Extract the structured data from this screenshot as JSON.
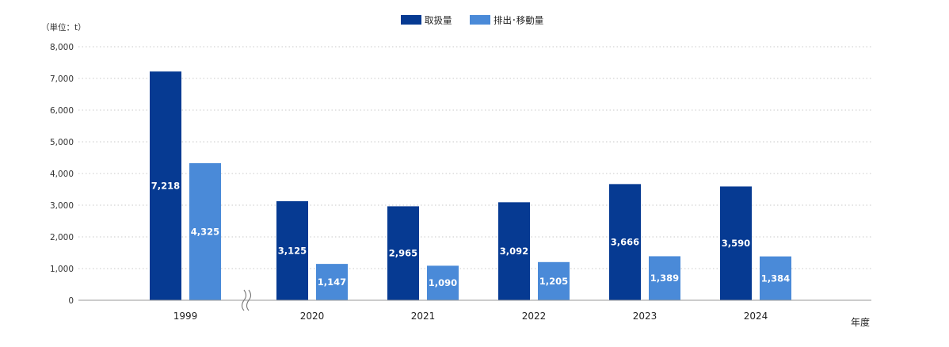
{
  "chart_data": {
    "type": "bar",
    "unit_label": "（単位：t）",
    "xlabel": "年度",
    "categories": [
      "1999",
      "2020",
      "2021",
      "2022",
      "2023",
      "2024"
    ],
    "series": [
      {
        "name": "取扱量",
        "color": "#063a92",
        "values": [
          7218,
          3125,
          2965,
          3092,
          3666,
          3590
        ],
        "labels": [
          "7,218",
          "3,125",
          "2,965",
          "3,092",
          "3,666",
          "3,590"
        ]
      },
      {
        "name": "排出･移動量",
        "color": "#4a8ad8",
        "values": [
          4325,
          1147,
          1090,
          1205,
          1389,
          1384
        ],
        "labels": [
          "4,325",
          "1,147",
          "1,090",
          "1,205",
          "1,389",
          "1,384"
        ]
      }
    ],
    "ylim": [
      0,
      8000
    ],
    "yticks": [
      0,
      1000,
      2000,
      3000,
      4000,
      5000,
      6000,
      7000,
      8000
    ],
    "ytick_labels": [
      "0",
      "1,000",
      "2,000",
      "3,000",
      "4,000",
      "5,000",
      "6,000",
      "7,000",
      "8,000"
    ],
    "grid": true,
    "axis_break_after": "1999",
    "legend_position": "top-center"
  }
}
